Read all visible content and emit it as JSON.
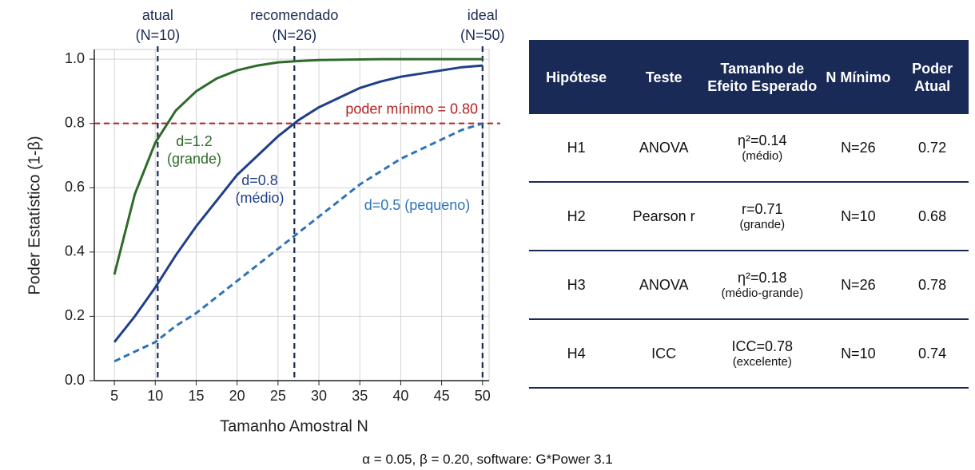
{
  "chart_data": {
    "type": "line",
    "xlabel": "Tamanho Amostral N",
    "ylabel": "Poder Estatístico (1-β)",
    "x": [
      5,
      7.5,
      10,
      12.5,
      15,
      17.5,
      20,
      22.5,
      25,
      27.5,
      30,
      32.5,
      35,
      37.5,
      40,
      42.5,
      45,
      47.5,
      50
    ],
    "series": [
      {
        "name": "d=1.2",
        "note": "(grande)",
        "color": "#2e6b2a",
        "dash": false,
        "values": [
          0.33,
          0.58,
          0.74,
          0.84,
          0.9,
          0.94,
          0.965,
          0.98,
          0.99,
          0.994,
          0.997,
          0.998,
          0.999,
          1.0,
          1.0,
          1.0,
          1.0,
          1.0,
          1.0
        ]
      },
      {
        "name": "d=0.8",
        "note": "(médio)",
        "color": "#1f3f8a",
        "dash": false,
        "values": [
          0.12,
          0.2,
          0.29,
          0.39,
          0.48,
          0.56,
          0.64,
          0.7,
          0.76,
          0.81,
          0.85,
          0.88,
          0.91,
          0.93,
          0.945,
          0.955,
          0.965,
          0.975,
          0.98
        ]
      },
      {
        "name": "d=0.5 (pequeno)",
        "color": "#2d73b8",
        "dash": true,
        "values": [
          0.06,
          0.09,
          0.12,
          0.17,
          0.21,
          0.26,
          0.31,
          0.36,
          0.41,
          0.46,
          0.51,
          0.56,
          0.61,
          0.65,
          0.69,
          0.72,
          0.75,
          0.78,
          0.8
        ]
      }
    ],
    "xlim": [
      2.55,
      50.8
    ],
    "ylim": [
      0,
      1.03
    ],
    "xticks": [
      5,
      10,
      15,
      20,
      25,
      30,
      35,
      40,
      45,
      50
    ],
    "yticks": [
      {
        "value": 0,
        "label": "0.0"
      },
      0.2,
      0.4,
      0.6,
      0.8,
      {
        "value": 1,
        "label": "1.0"
      }
    ],
    "grid": true,
    "hline": {
      "y": 0.8,
      "label": "poder mínimo = 0.80",
      "color": "#b22222"
    },
    "vlines": [
      {
        "x": 10.3,
        "label": "atual",
        "sublabel": "(N=10)"
      },
      {
        "x": 27,
        "label": "recomendado",
        "sublabel": "(N=26)"
      },
      {
        "x": 50,
        "label": "ideal",
        "sublabel": "(N=50)"
      }
    ],
    "vline_color": "#1a2a57"
  },
  "table": {
    "header": [
      "Hipótese",
      "Teste",
      "Tamanho de Efeito Esperado",
      "N Mínimo",
      "Poder Atual"
    ],
    "rows": [
      [
        "H1",
        "ANOVA",
        {
          "main": "η²=0.14",
          "note": "(médio)"
        },
        "N=26",
        "0.72"
      ],
      [
        "H2",
        "Pearson r",
        {
          "main": "r=0.71",
          "note": "(grande)"
        },
        "N=10",
        "0.68"
      ],
      [
        "H3",
        "ANOVA",
        {
          "main": "η²=0.18",
          "note": "(médio-grande)"
        },
        "N=26",
        "0.78"
      ],
      [
        "H4",
        "ICC",
        {
          "main": "ICC=0.78",
          "note": "(excelente)"
        },
        "N=10",
        "0.74"
      ]
    ]
  },
  "footnote": "α = 0.05, β = 0.20, software: G*Power 3.1"
}
